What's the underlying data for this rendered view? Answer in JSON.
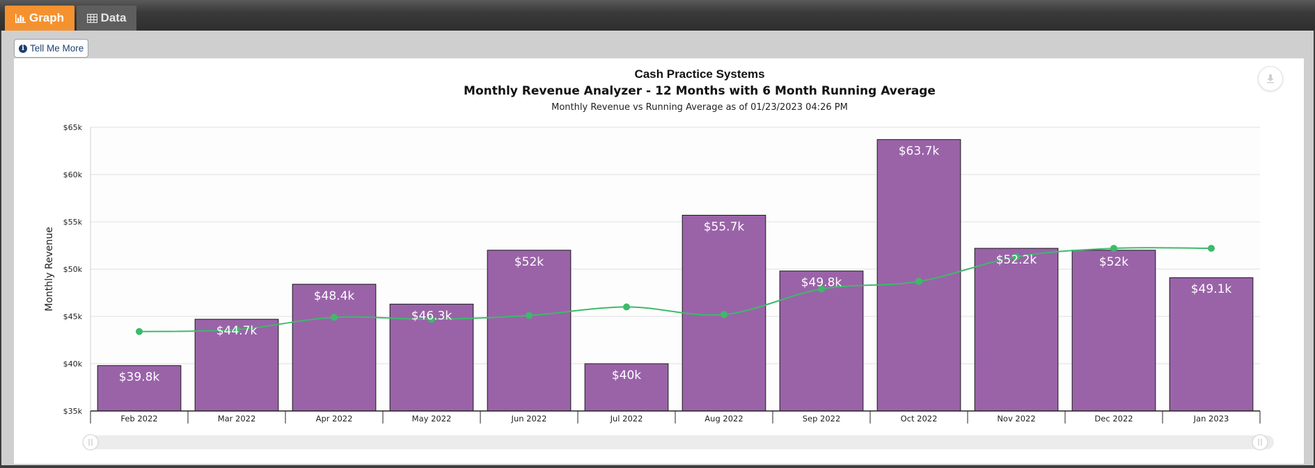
{
  "tabs": [
    {
      "label": "Graph",
      "icon": "bar-chart-icon",
      "active": true
    },
    {
      "label": "Data",
      "icon": "table-icon",
      "active": false
    }
  ],
  "tell_me_more": {
    "label": "Tell Me More",
    "icon": "info-icon"
  },
  "chart_data": {
    "type": "bar",
    "title": "Cash Practice Systems",
    "subtitle": "Monthly Revenue Analyzer - 12 Months with 6 Month Running Average",
    "caption": "Monthly Revenue vs Running Average as of 01/23/2023 04:26 PM",
    "xlabel": "",
    "ylabel": "Monthly Revenue",
    "ylim": [
      35000,
      65000
    ],
    "yticks": [
      35000,
      40000,
      45000,
      50000,
      55000,
      60000,
      65000
    ],
    "ytick_labels": [
      "$35k",
      "$40k",
      "$45k",
      "$50k",
      "$55k",
      "$60k",
      "$65k"
    ],
    "categories": [
      "Feb 2022",
      "Mar 2022",
      "Apr 2022",
      "May 2022",
      "Jun 2022",
      "Jul 2022",
      "Aug 2022",
      "Sep 2022",
      "Oct 2022",
      "Nov 2022",
      "Dec 2022",
      "Jan 2023"
    ],
    "series": [
      {
        "type": "bar",
        "values": [
          39800,
          44700,
          48400,
          46300,
          52000,
          40000,
          55700,
          49800,
          63700,
          52200,
          52000,
          49100
        ],
        "labels": [
          "$39.8k",
          "$44.7k",
          "$48.4k",
          "$46.3k",
          "$52k",
          "$40k",
          "$55.7k",
          "$49.8k",
          "$63.7k",
          "$52.2k",
          "$52k",
          "$49.1k"
        ],
        "color": "#9a63a8"
      },
      {
        "type": "line",
        "values": [
          43400,
          43600,
          44900,
          44700,
          45100,
          46000,
          45200,
          47900,
          48700,
          51300,
          52200,
          52200
        ],
        "color": "#3dba6a"
      }
    ],
    "grid": true,
    "legend": "none",
    "navigator": true
  }
}
